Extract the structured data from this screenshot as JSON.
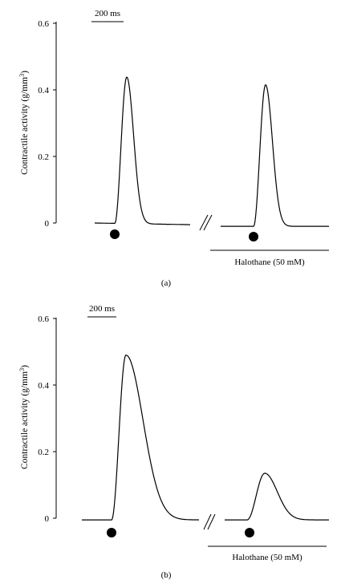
{
  "chart_data": [
    {
      "type": "line",
      "panel_label": "(a)",
      "ylabel": "Contractile activity (g/mm³)",
      "ylabel_main": "Contractile activity (g/mm",
      "ylabel_sup": "3",
      "ylabel_end": ")",
      "ylim": [
        0,
        0.6
      ],
      "yticks": [
        "0",
        "0.2",
        "0.4",
        "0.6"
      ],
      "scale_bar_label": "200 ms",
      "treatment_label": "Halothane (50 mM)",
      "series": [
        {
          "peak": 0.44,
          "baseline_start": 0.0,
          "baseline_end": -0.005,
          "shape": "narrow"
        },
        {
          "peak": 0.415,
          "baseline_start": -0.01,
          "baseline_end": -0.01,
          "shape": "narrow"
        }
      ]
    },
    {
      "type": "line",
      "panel_label": "(b)",
      "ylabel": "Contractile activity (g/mm³)",
      "ylabel_main": "Contractile activity (g/mm",
      "ylabel_sup": "3",
      "ylabel_end": ")",
      "ylim": [
        0,
        0.6
      ],
      "yticks": [
        "0",
        "0.2",
        "0.4",
        "0.6"
      ],
      "scale_bar_label": "200 ms",
      "treatment_label": "Halothane (50 mM)",
      "series": [
        {
          "peak": 0.49,
          "baseline_start": -0.005,
          "baseline_end": -0.005,
          "shape": "wide"
        },
        {
          "peak": 0.135,
          "baseline_start": -0.005,
          "baseline_end": -0.005,
          "shape": "wide-small"
        }
      ]
    }
  ]
}
